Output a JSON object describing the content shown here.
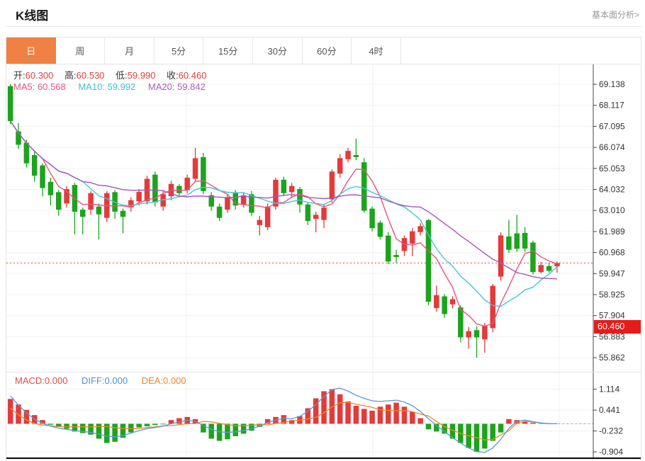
{
  "page": {
    "title": "K线图",
    "link": "基本面分析>"
  },
  "tabs": {
    "items": [
      "日",
      "周",
      "月",
      "5分",
      "15分",
      "30分",
      "60分",
      "4时"
    ],
    "active": 0
  },
  "kline_header": {
    "open_label": "开:",
    "open_value": "60.300",
    "high_label": "高:",
    "high_value": "60.530",
    "low_label": "低:",
    "low_value": "59.990",
    "close_label": "收:",
    "close_value": "60.460",
    "ma5": "MA5: 60.568",
    "ma10": "MA10: 59.992",
    "ma20": "MA20: 59.842"
  },
  "macd_header": {
    "macd": "MACD:0.000",
    "diff": "DIFF:0.000",
    "dea": "DEA:0.000"
  },
  "price_badge": "60.460",
  "colors": {
    "up": "#e23b3b",
    "down": "#1ca41c",
    "ma5": "#e8537f",
    "ma10": "#45c5d8",
    "ma20": "#a855bd",
    "diff": "#5b9bd5",
    "dea": "#f0862b",
    "current_line": "#ef4136",
    "badge_bg": "#e61b1b",
    "grid": "#f0f0f0",
    "axis": "#444444",
    "tick_text": "#333333",
    "tab_active": "#ee8143",
    "zero_dash": "#8ab4dc"
  },
  "chart_data": [
    {
      "type": "candlestick",
      "title": "K线图 日线",
      "pane": "main",
      "y_tick_labels": [
        "69.138",
        "68.117",
        "67.095",
        "66.074",
        "65.053",
        "64.032",
        "63.010",
        "61.989",
        "60.968",
        "59.947",
        "58.925",
        "57.904",
        "56.883",
        "55.862"
      ],
      "current_price": 60.46,
      "slots": 73,
      "ma_periods": [
        5,
        10,
        20
      ],
      "legend": [
        "MA5",
        "MA10",
        "MA20"
      ],
      "candles_format": [
        "open",
        "close",
        "high",
        "low"
      ],
      "candles": [
        [
          69.05,
          67.35,
          69.14,
          67.2
        ],
        [
          66.85,
          66.2,
          67.25,
          66.0
        ],
        [
          66.3,
          65.3,
          66.45,
          65.1
        ],
        [
          65.7,
          64.7,
          65.85,
          64.4
        ],
        [
          65.2,
          64.1,
          65.3,
          63.7
        ],
        [
          64.4,
          63.75,
          64.6,
          63.25
        ],
        [
          63.9,
          63.05,
          64.0,
          62.75
        ],
        [
          63.35,
          64.05,
          64.2,
          63.15
        ],
        [
          64.25,
          62.95,
          64.35,
          61.85
        ],
        [
          63.05,
          62.7,
          63.15,
          61.85
        ],
        [
          63.05,
          63.85,
          63.95,
          62.8
        ],
        [
          63.2,
          62.82,
          63.35,
          61.6
        ],
        [
          62.65,
          63.85,
          63.95,
          62.45
        ],
        [
          63.9,
          62.95,
          64.0,
          62.6
        ],
        [
          62.99,
          62.7,
          63.1,
          61.9
        ],
        [
          63.16,
          63.51,
          63.65,
          62.95
        ],
        [
          63.45,
          63.91,
          64.05,
          63.25
        ],
        [
          63.45,
          64.55,
          64.7,
          63.3
        ],
        [
          64.75,
          63.4,
          64.9,
          63.2
        ],
        [
          63.2,
          63.8,
          63.95,
          63.0
        ],
        [
          63.7,
          64.3,
          64.45,
          63.5
        ],
        [
          64.2,
          63.85,
          64.3,
          63.7
        ],
        [
          64.0,
          64.6,
          64.75,
          63.85
        ],
        [
          64.55,
          65.55,
          66.05,
          64.4
        ],
        [
          65.6,
          63.95,
          65.8,
          63.8
        ],
        [
          63.75,
          63.2,
          63.9,
          63.0
        ],
        [
          63.2,
          62.65,
          63.35,
          62.5
        ],
        [
          63.05,
          63.65,
          63.8,
          62.9
        ],
        [
          63.85,
          63.25,
          64.0,
          63.05
        ],
        [
          63.3,
          63.75,
          63.9,
          63.15
        ],
        [
          63.8,
          62.9,
          63.95,
          62.75
        ],
        [
          62.3,
          62.55,
          62.75,
          61.8
        ],
        [
          62.2,
          63.2,
          63.35,
          62.05
        ],
        [
          63.2,
          64.5,
          64.6,
          63.05
        ],
        [
          64.5,
          63.85,
          64.65,
          63.7
        ],
        [
          63.9,
          64.2,
          64.35,
          63.6
        ],
        [
          64.05,
          63.3,
          64.15,
          62.9
        ],
        [
          63.3,
          62.5,
          63.4,
          62.3
        ],
        [
          62.6,
          62.8,
          62.95,
          61.95
        ],
        [
          62.55,
          63.15,
          63.3,
          62.15
        ],
        [
          63.55,
          64.9,
          65.0,
          63.4
        ],
        [
          64.8,
          65.55,
          65.75,
          64.6
        ],
        [
          65.5,
          65.9,
          66.05,
          65.35
        ],
        [
          65.7,
          65.6,
          66.5,
          65.45
        ],
        [
          65.35,
          63.0,
          65.55,
          62.9
        ],
        [
          63.1,
          62.15,
          63.2,
          62.0
        ],
        [
          62.42,
          61.73,
          62.52,
          61.6
        ],
        [
          61.79,
          60.53,
          61.96,
          60.4
        ],
        [
          60.85,
          60.75,
          61.1,
          60.45
        ],
        [
          61.04,
          61.67,
          61.8,
          60.8
        ],
        [
          61.4,
          62.0,
          62.15,
          60.8
        ],
        [
          61.96,
          62.25,
          62.4,
          61.8
        ],
        [
          62.54,
          58.58,
          62.6,
          58.4
        ],
        [
          58.27,
          58.9,
          59.36,
          58.1
        ],
        [
          58.84,
          57.98,
          58.95,
          57.8
        ],
        [
          58.45,
          58.7,
          58.85,
          58.25
        ],
        [
          58.3,
          56.85,
          58.4,
          56.6
        ],
        [
          56.85,
          57.15,
          57.35,
          56.3
        ],
        [
          57.2,
          56.85,
          57.4,
          55.86
        ],
        [
          56.75,
          57.4,
          57.55,
          56.1
        ],
        [
          57.3,
          59.35,
          59.45,
          57.1
        ],
        [
          59.8,
          61.8,
          61.95,
          59.6
        ],
        [
          61.75,
          61.1,
          62.55,
          60.95
        ],
        [
          61.9,
          61.15,
          62.8,
          61.0
        ],
        [
          61.92,
          61.16,
          62.2,
          61.0
        ],
        [
          61.45,
          60.02,
          61.55,
          59.9
        ],
        [
          60.02,
          60.36,
          60.5,
          59.95
        ],
        [
          60.31,
          60.08,
          60.45,
          60.0
        ],
        [
          60.3,
          60.46,
          60.53,
          59.99
        ]
      ]
    },
    {
      "type": "bar",
      "title": "MACD(12,26,9)",
      "pane": "macd",
      "y_tick_labels": [
        "1.114",
        "0.441",
        "-0.232",
        "-0.904"
      ],
      "last_values": {
        "macd": "0.000",
        "diff": "0.000",
        "dea": "0.000"
      },
      "dea_rule": "dea = diff - hist/2",
      "hist": [
        0.8,
        0.62,
        0.45,
        0.28,
        0.12,
        -0.03,
        -0.1,
        -0.16,
        -0.25,
        -0.3,
        -0.35,
        -0.48,
        -0.62,
        -0.58,
        -0.45,
        -0.28,
        -0.12,
        -0.08,
        -0.04,
        -0.02,
        0.12,
        0.18,
        0.22,
        0.15,
        -0.28,
        -0.48,
        -0.55,
        -0.5,
        -0.4,
        -0.32,
        -0.22,
        -0.1,
        0.15,
        0.22,
        0.28,
        0.12,
        0.25,
        0.5,
        0.82,
        1.05,
        1.114,
        0.95,
        0.72,
        0.58,
        0.48,
        0.42,
        0.55,
        0.62,
        0.68,
        0.55,
        0.38,
        0.18,
        -0.18,
        -0.25,
        -0.32,
        -0.48,
        -0.62,
        -0.78,
        -0.904,
        -0.8,
        -0.55,
        -0.28,
        0.15,
        0.12,
        0.08,
        0.03,
        0.01,
        0.0,
        0.0
      ],
      "diff": [
        0.9,
        0.6,
        0.35,
        0.15,
        0.02,
        -0.08,
        -0.14,
        -0.18,
        -0.22,
        -0.25,
        -0.28,
        -0.33,
        -0.4,
        -0.42,
        -0.38,
        -0.3,
        -0.22,
        -0.16,
        -0.12,
        -0.08,
        0.0,
        0.06,
        0.11,
        0.08,
        -0.06,
        -0.18,
        -0.26,
        -0.28,
        -0.26,
        -0.22,
        -0.16,
        -0.08,
        0.04,
        0.12,
        0.18,
        0.16,
        0.24,
        0.4,
        0.62,
        0.88,
        1.1,
        1.15,
        1.05,
        0.92,
        0.82,
        0.74,
        0.72,
        0.74,
        0.76,
        0.7,
        0.58,
        0.4,
        0.16,
        -0.05,
        -0.25,
        -0.45,
        -0.62,
        -0.78,
        -0.9,
        -0.92,
        -0.78,
        -0.5,
        -0.15,
        0.08,
        0.12,
        0.07,
        0.03,
        0.0,
        0.0
      ]
    }
  ]
}
